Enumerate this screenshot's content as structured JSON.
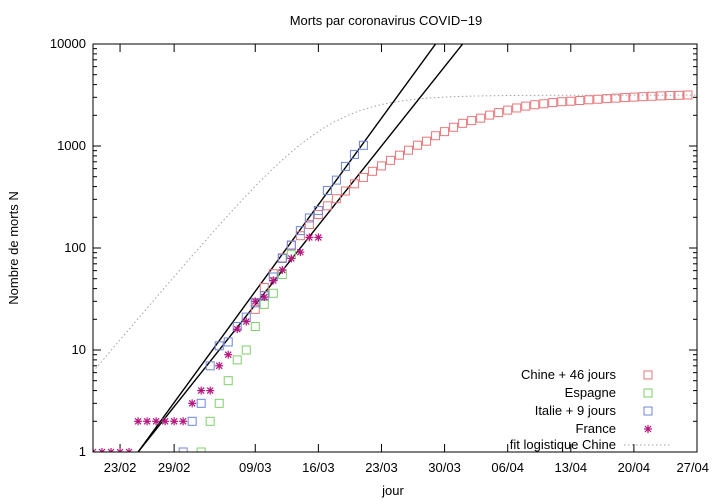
{
  "chart_data": {
    "type": "scatter",
    "title": "Morts par coronavirus COVID−19",
    "xlabel": "jour",
    "ylabel": "Nombre de morts N",
    "yscale": "log",
    "ylim": [
      1,
      10000
    ],
    "xlim": [
      "2020-02-20",
      "2020-04-27"
    ],
    "x_ticks": [
      "23/02",
      "29/02",
      "09/03",
      "16/03",
      "23/03",
      "30/03",
      "06/04",
      "13/04",
      "20/04",
      "27/04"
    ],
    "y_ticks": [
      "1",
      "10",
      "100",
      "1000",
      "10000"
    ],
    "grid": false,
    "legend_position": "bottom-right",
    "series": [
      {
        "name": "Chine + 46 jours",
        "marker": "square",
        "color": "#e8777b",
        "x": [
          "2020-03-09",
          "2020-03-10",
          "2020-03-11",
          "2020-03-12",
          "2020-03-13",
          "2020-03-14",
          "2020-03-15",
          "2020-03-16",
          "2020-03-17",
          "2020-03-18",
          "2020-03-19",
          "2020-03-20",
          "2020-03-21",
          "2020-03-22",
          "2020-03-23",
          "2020-03-24",
          "2020-03-25",
          "2020-03-26",
          "2020-03-27",
          "2020-03-28",
          "2020-03-29",
          "2020-03-30",
          "2020-03-31",
          "2020-04-01",
          "2020-04-02",
          "2020-04-03",
          "2020-04-04",
          "2020-04-05",
          "2020-04-06",
          "2020-04-07",
          "2020-04-08",
          "2020-04-09",
          "2020-04-10",
          "2020-04-11",
          "2020-04-12",
          "2020-04-13",
          "2020-04-14",
          "2020-04-15",
          "2020-04-16",
          "2020-04-17",
          "2020-04-18",
          "2020-04-19",
          "2020-04-20",
          "2020-04-21",
          "2020-04-22",
          "2020-04-23",
          "2020-04-24",
          "2020-04-25",
          "2020-04-26"
        ],
        "y": [
          25,
          41,
          56,
          80,
          106,
          132,
          170,
          213,
          259,
          304,
          362,
          426,
          492,
          565,
          638,
          724,
          813,
          910,
          1018,
          1115,
          1261,
          1383,
          1526,
          1669,
          1775,
          1873,
          2009,
          2126,
          2247,
          2360,
          2460,
          2539,
          2594,
          2666,
          2718,
          2747,
          2791,
          2838,
          2873,
          2915,
          2946,
          2984,
          3015,
          3045,
          3073,
          3100,
          3123,
          3140,
          3162
        ]
      },
      {
        "name": "Espagne",
        "marker": "square",
        "color": "#7fcf6e",
        "x": [
          "2020-03-03",
          "2020-03-04",
          "2020-03-05",
          "2020-03-06",
          "2020-03-07",
          "2020-03-08",
          "2020-03-09",
          "2020-03-10",
          "2020-03-11",
          "2020-03-12",
          "2020-03-13"
        ],
        "y": [
          1,
          2,
          3,
          5,
          8,
          10,
          17,
          28,
          36,
          55,
          86
        ]
      },
      {
        "name": "Italie + 9 jours",
        "marker": "square",
        "color": "#6f86d6",
        "x": [
          "2020-03-01",
          "2020-03-02",
          "2020-03-03",
          "2020-03-04",
          "2020-03-05",
          "2020-03-06",
          "2020-03-07",
          "2020-03-08",
          "2020-03-09",
          "2020-03-10",
          "2020-03-11",
          "2020-03-12",
          "2020-03-13",
          "2020-03-14",
          "2020-03-15",
          "2020-03-16",
          "2020-03-17",
          "2020-03-18",
          "2020-03-19",
          "2020-03-20",
          "2020-03-21"
        ],
        "y": [
          1,
          2,
          3,
          7,
          11,
          12,
          17,
          21,
          29,
          34,
          52,
          79,
          107,
          148,
          197,
          233,
          366,
          463,
          631,
          827,
          1016
        ]
      },
      {
        "name": "France",
        "marker": "asterisk",
        "color": "#b5177f",
        "x": [
          "2020-02-20",
          "2020-02-21",
          "2020-02-22",
          "2020-02-23",
          "2020-02-24",
          "2020-02-25",
          "2020-02-26",
          "2020-02-27",
          "2020-02-28",
          "2020-02-29",
          "2020-03-01",
          "2020-03-02",
          "2020-03-03",
          "2020-03-04",
          "2020-03-05",
          "2020-03-06",
          "2020-03-07",
          "2020-03-08",
          "2020-03-09",
          "2020-03-10",
          "2020-03-11",
          "2020-03-12",
          "2020-03-13",
          "2020-03-14",
          "2020-03-15",
          "2020-03-16"
        ],
        "y": [
          1,
          1,
          1,
          1,
          1,
          2,
          2,
          2,
          2,
          2,
          2,
          3,
          4,
          4,
          7,
          9,
          16,
          19,
          30,
          33,
          48,
          61,
          79,
          91,
          127,
          127
        ]
      }
    ],
    "fits": [
      {
        "name": "fit logistique Chine",
        "style": "dotted",
        "color": "#a0a0a0",
        "type": "logistic",
        "K": 3150,
        "r": 0.24,
        "midpoint": "2020-03-17"
      },
      {
        "style": "solid",
        "color": "#000000",
        "type": "exponential",
        "from": [
          "2020-02-25",
          1
        ],
        "to": [
          "2020-03-29",
          10000
        ]
      },
      {
        "style": "solid",
        "color": "#000000",
        "type": "exponential",
        "from": [
          "2020-02-25",
          1
        ],
        "to": [
          "2020-04-01",
          10000
        ]
      }
    ]
  }
}
